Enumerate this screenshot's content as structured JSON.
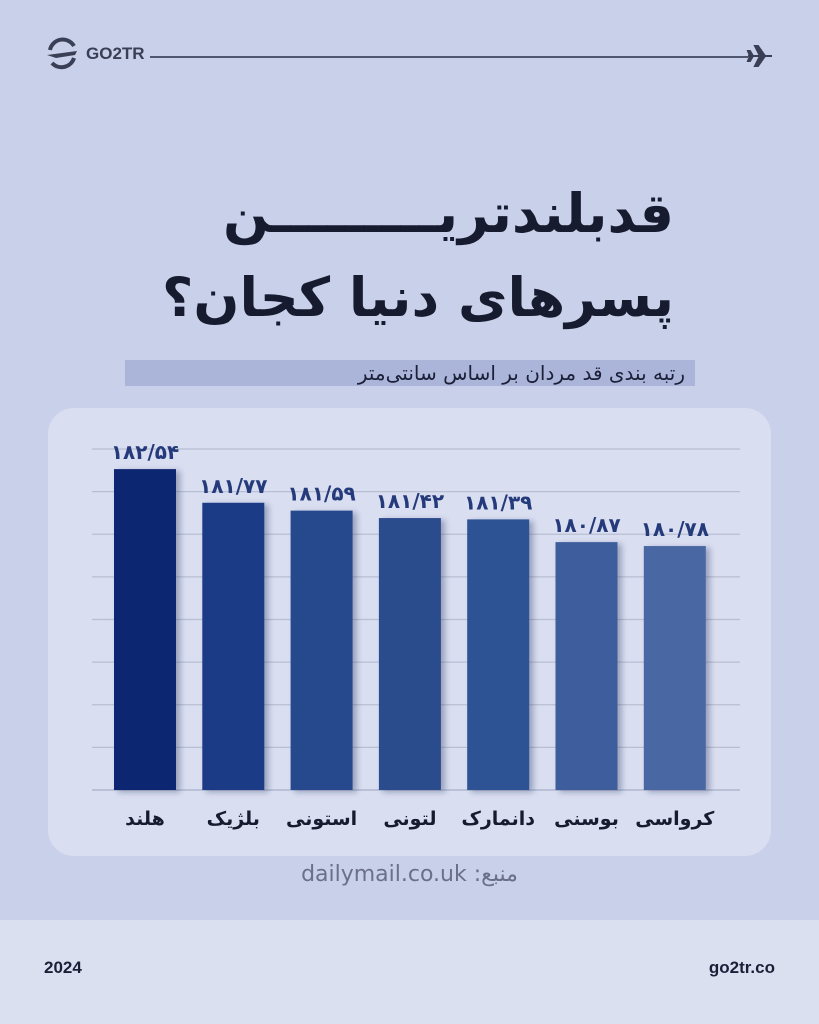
{
  "brand": {
    "name": "GO2TR",
    "website": "go2tr.co",
    "year": "2024"
  },
  "header": {
    "title_line1": "قدبلندتریـــــــــن",
    "title_line2": "پسرهای دنیا کجان؟",
    "subtitle": "رتبه بندی قد مردان بر اساس سانتی‌متر"
  },
  "source": "منبع: dailymail.co.uk",
  "chart_data": {
    "type": "bar",
    "categories": [
      "هلند",
      "بلژیک",
      "استونی",
      "لتونی",
      "دانمارک",
      "بوسنی",
      "کرواسی"
    ],
    "values": [
      182.54,
      181.77,
      181.59,
      181.42,
      181.39,
      180.87,
      180.78
    ],
    "data_labels": [
      "۱۸۲/۵۴",
      "۱۸۱/۷۷",
      "۱۸۱/۵۹",
      "۱۸۱/۴۲",
      "۱۸۱/۳۹",
      "۱۸۰/۸۷",
      "۱۸۰/۷۸"
    ],
    "colors": [
      "#0b2672",
      "#1b3a86",
      "#26498e",
      "#294b8c",
      "#2f5294",
      "#3c5d9d",
      "#4a67a3"
    ],
    "ylim": [
      175.2,
      183.0
    ],
    "grid": true,
    "title": "",
    "xlabel": "",
    "ylabel": ""
  }
}
